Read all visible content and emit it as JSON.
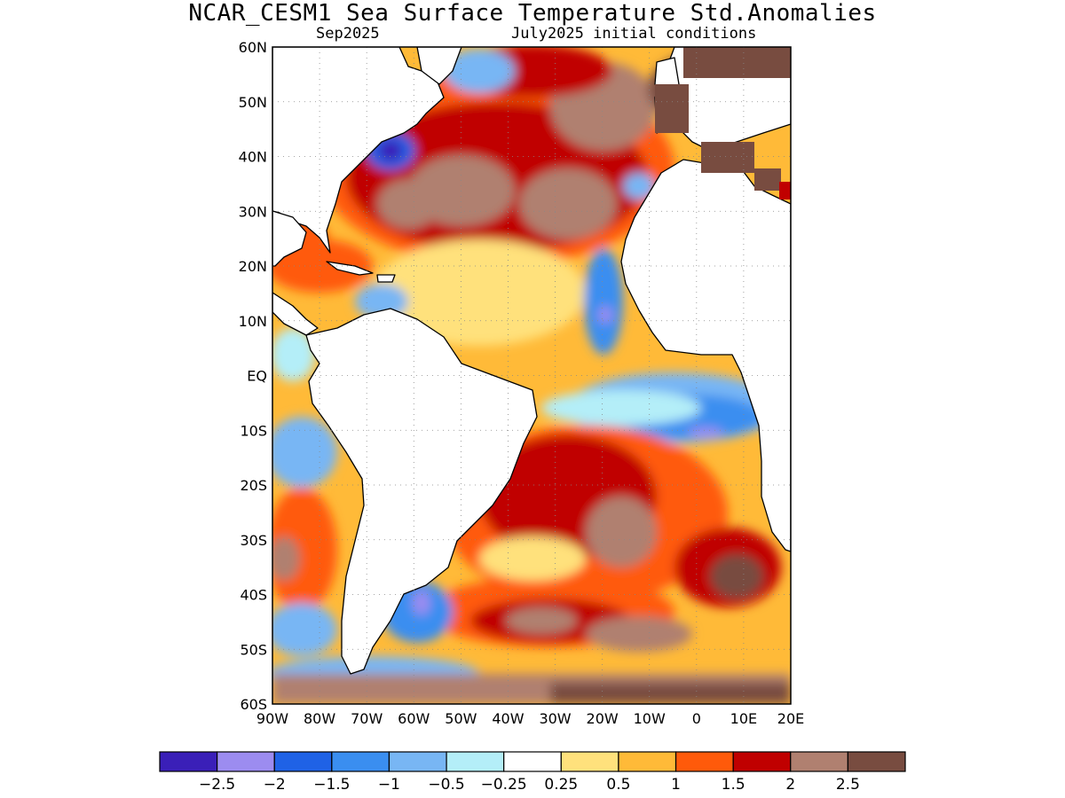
{
  "title": "NCAR_CESM1 Sea Surface Temperature Std.Anomalies",
  "subtitle_left": "Sep2025",
  "subtitle_right": "July2025 initial conditions",
  "map": {
    "lon_range": [
      -90,
      20
    ],
    "lat_range": [
      -60,
      60
    ],
    "lat_ticks": [
      {
        "value": 60,
        "label": "60N"
      },
      {
        "value": 50,
        "label": "50N"
      },
      {
        "value": 40,
        "label": "40N"
      },
      {
        "value": 30,
        "label": "30N"
      },
      {
        "value": 20,
        "label": "20N"
      },
      {
        "value": 10,
        "label": "10N"
      },
      {
        "value": 0,
        "label": "EQ"
      },
      {
        "value": -10,
        "label": "10S"
      },
      {
        "value": -20,
        "label": "20S"
      },
      {
        "value": -30,
        "label": "30S"
      },
      {
        "value": -40,
        "label": "40S"
      },
      {
        "value": -50,
        "label": "50S"
      },
      {
        "value": -60,
        "label": "60S"
      }
    ],
    "lon_ticks": [
      {
        "value": -90,
        "label": "90W"
      },
      {
        "value": -80,
        "label": "80W"
      },
      {
        "value": -70,
        "label": "70W"
      },
      {
        "value": -60,
        "label": "60W"
      },
      {
        "value": -50,
        "label": "50W"
      },
      {
        "value": -40,
        "label": "40W"
      },
      {
        "value": -30,
        "label": "30W"
      },
      {
        "value": -20,
        "label": "20W"
      },
      {
        "value": -10,
        "label": "10W"
      },
      {
        "value": 0,
        "label": "0"
      },
      {
        "value": 10,
        "label": "10E"
      },
      {
        "value": 20,
        "label": "20E"
      }
    ]
  },
  "colorbar": {
    "colors": [
      "#3a1fb8",
      "#9c8cf0",
      "#1f62e6",
      "#3a8ef0",
      "#78b6f4",
      "#b4eef8",
      "#ffffff",
      "#ffe17c",
      "#ffba38",
      "#ff5a0a",
      "#c00000",
      "#b08070",
      "#784c40"
    ],
    "labels": [
      "−2.5",
      "−2",
      "−1.5",
      "−1",
      "−0.5",
      "−0.25",
      "0.25",
      "0.5",
      "1",
      "1.5",
      "2",
      "2.5"
    ]
  }
}
